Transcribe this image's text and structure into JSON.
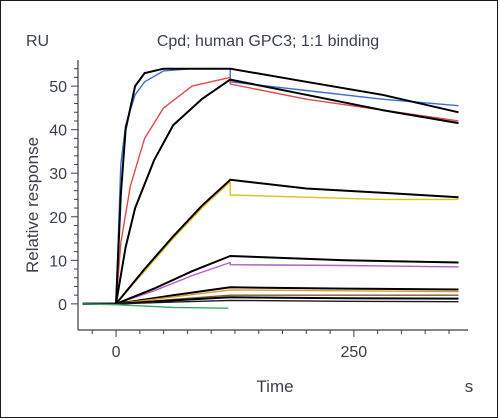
{
  "chart_data": {
    "type": "line",
    "title": "Cpd; human GPC3; 1:1 binding",
    "unit_label": "RU",
    "ylabel": "Relative response",
    "xlabel": "Time",
    "x_unit": "s",
    "x_ticks": [
      0,
      250
    ],
    "y_ticks": [
      0,
      10,
      20,
      30,
      40,
      50
    ],
    "xlim": [
      -40,
      370
    ],
    "ylim": [
      -6,
      56
    ],
    "grid": false,
    "series": [
      {
        "color": "#3a6fd0",
        "points": [
          [
            -35,
            0
          ],
          [
            0,
            0
          ],
          [
            5,
            32
          ],
          [
            10,
            41
          ],
          [
            20,
            48
          ],
          [
            30,
            51
          ],
          [
            50,
            53.5
          ],
          [
            80,
            54
          ],
          [
            120,
            54
          ],
          [
            120,
            51
          ],
          [
            200,
            49
          ],
          [
            280,
            47
          ],
          [
            360,
            45.5
          ]
        ]
      },
      {
        "color": "#e24a4a",
        "points": [
          [
            -35,
            0
          ],
          [
            0,
            0
          ],
          [
            5,
            14
          ],
          [
            15,
            27
          ],
          [
            30,
            38
          ],
          [
            50,
            45
          ],
          [
            80,
            50
          ],
          [
            120,
            52
          ],
          [
            120,
            50.5
          ],
          [
            200,
            47
          ],
          [
            280,
            44.5
          ],
          [
            360,
            42
          ]
        ]
      },
      {
        "color": "#000000",
        "points": [
          [
            -35,
            0
          ],
          [
            0,
            0
          ],
          [
            5,
            25
          ],
          [
            10,
            40
          ],
          [
            20,
            50
          ],
          [
            30,
            53
          ],
          [
            50,
            54
          ],
          [
            80,
            54
          ],
          [
            120,
            54
          ],
          [
            200,
            51
          ],
          [
            280,
            48
          ],
          [
            360,
            44
          ]
        ]
      },
      {
        "color": "#000000",
        "points": [
          [
            -35,
            0
          ],
          [
            0,
            0
          ],
          [
            10,
            13
          ],
          [
            20,
            22
          ],
          [
            40,
            33
          ],
          [
            60,
            41
          ],
          [
            90,
            47
          ],
          [
            120,
            51.5
          ],
          [
            200,
            48
          ],
          [
            280,
            44.5
          ],
          [
            360,
            41.5
          ]
        ]
      },
      {
        "color": "#d9c21a",
        "points": [
          [
            -35,
            0
          ],
          [
            0,
            0
          ],
          [
            30,
            7.5
          ],
          [
            60,
            15
          ],
          [
            90,
            22
          ],
          [
            120,
            28
          ],
          [
            120,
            25
          ],
          [
            200,
            24.5
          ],
          [
            280,
            24
          ],
          [
            360,
            24
          ]
        ]
      },
      {
        "color": "#000000",
        "points": [
          [
            -35,
            0
          ],
          [
            0,
            0
          ],
          [
            30,
            8
          ],
          [
            60,
            15.5
          ],
          [
            90,
            22.5
          ],
          [
            120,
            28.5
          ],
          [
            200,
            26.5
          ],
          [
            280,
            25.5
          ],
          [
            360,
            24.5
          ]
        ]
      },
      {
        "color": "#b05fc5",
        "points": [
          [
            -35,
            0
          ],
          [
            0,
            0
          ],
          [
            40,
            3
          ],
          [
            80,
            6.5
          ],
          [
            120,
            9.5
          ],
          [
            120,
            9
          ],
          [
            240,
            8.8
          ],
          [
            360,
            8.5
          ]
        ]
      },
      {
        "color": "#000000",
        "points": [
          [
            -35,
            0
          ],
          [
            0,
            0
          ],
          [
            40,
            3.5
          ],
          [
            80,
            7.5
          ],
          [
            120,
            11
          ],
          [
            240,
            10
          ],
          [
            360,
            9.5
          ]
        ]
      },
      {
        "color": "#000000",
        "points": [
          [
            -35,
            0
          ],
          [
            0,
            0
          ],
          [
            60,
            2
          ],
          [
            120,
            3.8
          ],
          [
            240,
            3.5
          ],
          [
            360,
            3.3
          ]
        ]
      },
      {
        "color": "#e09a2a",
        "points": [
          [
            -35,
            0
          ],
          [
            0,
            0
          ],
          [
            60,
            1.6
          ],
          [
            120,
            3.2
          ],
          [
            240,
            3.0
          ],
          [
            360,
            2.8
          ]
        ]
      },
      {
        "color": "#7a5a3a",
        "points": [
          [
            -35,
            0
          ],
          [
            0,
            0
          ],
          [
            60,
            1.0
          ],
          [
            120,
            2.0
          ],
          [
            240,
            2.0
          ],
          [
            360,
            2.0
          ]
        ]
      },
      {
        "color": "#000000",
        "points": [
          [
            -35,
            0
          ],
          [
            0,
            0
          ],
          [
            60,
            0.8
          ],
          [
            120,
            1.5
          ],
          [
            240,
            1.3
          ],
          [
            360,
            1.2
          ]
        ]
      },
      {
        "color": "#1a1a1a",
        "points": [
          [
            -35,
            0
          ],
          [
            0,
            0
          ],
          [
            60,
            0.4
          ],
          [
            120,
            0.8
          ],
          [
            240,
            0.6
          ],
          [
            360,
            0.5
          ]
        ]
      },
      {
        "color": "#3aa56a",
        "points": [
          [
            -35,
            0
          ],
          [
            0,
            -0.2
          ],
          [
            60,
            -0.8
          ],
          [
            118,
            -1.0
          ]
        ]
      }
    ]
  }
}
